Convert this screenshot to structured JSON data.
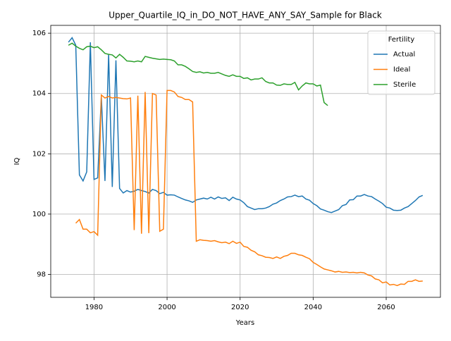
{
  "chart_data": {
    "type": "line",
    "title": "Upper_Quartile_IQ_in_DO_NOT_HAVE_ANY_SAY_Sample for Black",
    "xlabel": "Years",
    "ylabel": "IQ",
    "legend_title": "Fertility",
    "legend": "upper right",
    "grid": true,
    "xlim": [
      1968.15,
      2074.85
    ],
    "xticks": [
      1980,
      2000,
      2020,
      2040,
      2060
    ],
    "ylim": [
      97.24,
      106.26
    ],
    "yticks": [
      98,
      100,
      102,
      104,
      106
    ],
    "series": [
      {
        "name": "Actual",
        "color": "#1f77b4",
        "x": [
          1973,
          1974,
          1975,
          1976,
          1977,
          1978,
          1979,
          1980,
          1981,
          1982,
          1983,
          1984,
          1985,
          1986,
          1987,
          1988,
          1989,
          1990,
          1991,
          1992,
          1993,
          1994,
          1995,
          1996,
          1997,
          1998,
          1999,
          2000,
          2001,
          2002,
          2003,
          2004,
          2005,
          2006,
          2007,
          2008,
          2009,
          2010,
          2011,
          2012,
          2013,
          2014,
          2015,
          2016,
          2017,
          2018,
          2019,
          2020,
          2021,
          2022,
          2023,
          2024,
          2025,
          2026,
          2027,
          2028,
          2029,
          2030,
          2031,
          2032,
          2033,
          2034,
          2035,
          2036,
          2037,
          2038,
          2039,
          2040,
          2041,
          2042,
          2043,
          2044,
          2045,
          2046,
          2047,
          2048,
          2049,
          2050,
          2051,
          2052,
          2053,
          2054,
          2055,
          2056,
          2057,
          2058,
          2059,
          2060,
          2061,
          2062,
          2063,
          2064,
          2065,
          2066,
          2067,
          2068,
          2069,
          2070
        ],
        "values": [
          105.7,
          105.85,
          105.6,
          101.3,
          101.1,
          101.4,
          105.7,
          101.15,
          101.2,
          103.9,
          101.1,
          105.3,
          100.9,
          105.1,
          100.85,
          100.7,
          100.78,
          100.73,
          100.76,
          100.82,
          100.78,
          100.75,
          100.7,
          100.82,
          100.78,
          100.68,
          100.72,
          100.63,
          100.64,
          100.63,
          100.57,
          100.52,
          100.47,
          100.44,
          100.39,
          100.47,
          100.5,
          100.53,
          100.5,
          100.56,
          100.5,
          100.57,
          100.52,
          100.54,
          100.45,
          100.56,
          100.5,
          100.47,
          100.38,
          100.25,
          100.2,
          100.15,
          100.18,
          100.18,
          100.2,
          100.25,
          100.33,
          100.37,
          100.45,
          100.5,
          100.57,
          100.58,
          100.63,
          100.58,
          100.6,
          100.5,
          100.46,
          100.35,
          100.28,
          100.17,
          100.13,
          100.08,
          100.05,
          100.1,
          100.15,
          100.28,
          100.32,
          100.47,
          100.48,
          100.6,
          100.6,
          100.65,
          100.6,
          100.58,
          100.5,
          100.43,
          100.35,
          100.23,
          100.2,
          100.13,
          100.12,
          100.13,
          100.2,
          100.25,
          100.35,
          100.45,
          100.57,
          100.62
        ]
      },
      {
        "name": "Ideal",
        "color": "#ff7f0e",
        "x": [
          1975,
          1976,
          1977,
          1978,
          1979,
          1980,
          1981,
          1982,
          1983,
          1984,
          1985,
          1986,
          1987,
          1988,
          1989,
          1990,
          1991,
          1992,
          1993,
          1994,
          1995,
          1996,
          1997,
          1998,
          1999,
          2000,
          2001,
          2002,
          2003,
          2004,
          2005,
          2006,
          2007,
          2008,
          2009,
          2010,
          2011,
          2012,
          2013,
          2014,
          2015,
          2016,
          2017,
          2018,
          2019,
          2020,
          2021,
          2022,
          2023,
          2024,
          2025,
          2026,
          2027,
          2028,
          2029,
          2030,
          2031,
          2032,
          2033,
          2034,
          2035,
          2036,
          2037,
          2038,
          2039,
          2040,
          2041,
          2042,
          2043,
          2044,
          2045,
          2046,
          2047,
          2048,
          2049,
          2050,
          2051,
          2052,
          2053,
          2054,
          2055,
          2056,
          2057,
          2058,
          2059,
          2060,
          2061,
          2062,
          2063,
          2064,
          2065,
          2066,
          2067,
          2068,
          2069,
          2070
        ],
        "values": [
          99.7,
          99.82,
          99.5,
          99.5,
          99.38,
          99.42,
          99.3,
          103.95,
          103.85,
          103.9,
          103.85,
          103.87,
          103.85,
          103.83,
          103.82,
          103.85,
          99.47,
          103.93,
          99.35,
          104.05,
          99.37,
          104.0,
          103.95,
          99.43,
          99.5,
          104.1,
          104.1,
          104.05,
          103.9,
          103.87,
          103.8,
          103.8,
          103.72,
          99.1,
          99.15,
          99.13,
          99.12,
          99.1,
          99.12,
          99.08,
          99.05,
          99.07,
          99.02,
          99.1,
          99.03,
          99.07,
          98.93,
          98.9,
          98.8,
          98.75,
          98.65,
          98.62,
          98.57,
          98.56,
          98.53,
          98.58,
          98.53,
          98.6,
          98.63,
          98.7,
          98.7,
          98.65,
          98.63,
          98.57,
          98.52,
          98.4,
          98.33,
          98.25,
          98.18,
          98.15,
          98.12,
          98.08,
          98.1,
          98.07,
          98.08,
          98.06,
          98.07,
          98.05,
          98.07,
          98.05,
          97.98,
          97.95,
          97.85,
          97.82,
          97.72,
          97.75,
          97.65,
          97.67,
          97.63,
          97.68,
          97.67,
          97.77,
          97.77,
          97.82,
          97.77,
          97.78
        ]
      },
      {
        "name": "Sterile",
        "color": "#2ca02c",
        "x": [
          1973,
          1974,
          1975,
          1976,
          1977,
          1978,
          1979,
          1980,
          1981,
          1982,
          1983,
          1984,
          1985,
          1986,
          1987,
          1988,
          1989,
          1990,
          1991,
          1992,
          1993,
          1994,
          1995,
          1996,
          1997,
          1998,
          1999,
          2000,
          2001,
          2002,
          2003,
          2004,
          2005,
          2006,
          2007,
          2008,
          2009,
          2010,
          2011,
          2012,
          2013,
          2014,
          2015,
          2016,
          2017,
          2018,
          2019,
          2020,
          2021,
          2022,
          2023,
          2024,
          2025,
          2026,
          2027,
          2028,
          2029,
          2030,
          2031,
          2032,
          2033,
          2034,
          2035,
          2036,
          2037,
          2038,
          2039,
          2040,
          2041,
          2042,
          2043,
          2044
        ],
        "values": [
          105.6,
          105.67,
          105.57,
          105.5,
          105.45,
          105.55,
          105.57,
          105.52,
          105.55,
          105.45,
          105.33,
          105.3,
          105.28,
          105.18,
          105.3,
          105.2,
          105.08,
          105.07,
          105.05,
          105.08,
          105.05,
          105.23,
          105.2,
          105.17,
          105.15,
          105.13,
          105.14,
          105.13,
          105.12,
          105.08,
          104.95,
          104.95,
          104.9,
          104.82,
          104.73,
          104.7,
          104.72,
          104.68,
          104.7,
          104.67,
          104.67,
          104.7,
          104.65,
          104.6,
          104.57,
          104.62,
          104.57,
          104.57,
          104.5,
          104.52,
          104.45,
          104.48,
          104.48,
          104.52,
          104.4,
          104.35,
          104.35,
          104.28,
          104.27,
          104.32,
          104.3,
          104.3,
          104.37,
          104.12,
          104.25,
          104.35,
          104.32,
          104.32,
          104.25,
          104.28,
          103.7,
          103.6
        ]
      }
    ]
  }
}
